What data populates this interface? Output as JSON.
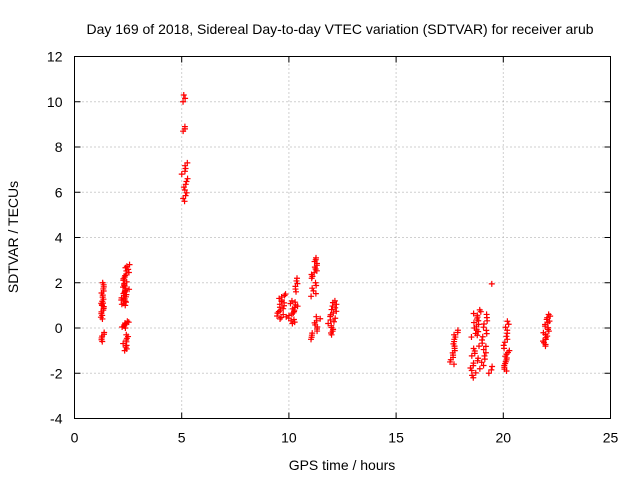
{
  "chart_data": {
    "type": "scatter",
    "title": "Day 169 of 2018, Sidereal Day-to-day VTEC variation (SDTVAR) for receiver arub",
    "xlabel": "GPS time / hours",
    "ylabel": "SDTVAR / TECUs",
    "xlim": [
      0,
      25
    ],
    "ylim": [
      -4,
      12
    ],
    "xticks": [
      "0",
      "5",
      "10",
      "15",
      "20",
      "25"
    ],
    "yticks": [
      "-4",
      "-2",
      "0",
      "2",
      "4",
      "6",
      "8",
      "10",
      "12"
    ],
    "grid": true,
    "marker": "plus",
    "marker_color": "#ff0000",
    "series": [
      {
        "name": "SDTVAR",
        "clusters": [
          {
            "x": [
              1.2,
              1.4
            ],
            "y": [
              1.0,
              2.0
            ],
            "n": 12
          },
          {
            "x": [
              1.2,
              1.4
            ],
            "y": [
              0.4,
              1.1
            ],
            "n": 10
          },
          {
            "x": [
              1.2,
              1.4
            ],
            "y": [
              -0.6,
              -0.2
            ],
            "n": 6
          },
          {
            "x": [
              2.2,
              2.6
            ],
            "y": [
              1.9,
              2.8
            ],
            "n": 14
          },
          {
            "x": [
              2.1,
              2.6
            ],
            "y": [
              1.0,
              1.9
            ],
            "n": 20
          },
          {
            "x": [
              2.2,
              2.6
            ],
            "y": [
              0.0,
              0.3
            ],
            "n": 8
          },
          {
            "x": [
              2.2,
              2.6
            ],
            "y": [
              -1.0,
              -0.3
            ],
            "n": 10
          },
          {
            "x": [
              5.0,
              5.2
            ],
            "y": [
              10.0,
              10.3
            ],
            "n": 3
          },
          {
            "x": [
              5.0,
              5.2
            ],
            "y": [
              8.7,
              8.9
            ],
            "n": 3
          },
          {
            "x": [
              5.0,
              5.3
            ],
            "y": [
              6.8,
              7.3
            ],
            "n": 5
          },
          {
            "x": [
              5.0,
              5.3
            ],
            "y": [
              5.6,
              6.6
            ],
            "n": 9
          },
          {
            "x": [
              9.4,
              9.9
            ],
            "y": [
              0.4,
              1.5
            ],
            "n": 18
          },
          {
            "x": [
              9.8,
              10.5
            ],
            "y": [
              0.2,
              1.2
            ],
            "n": 18
          },
          {
            "x": [
              10.2,
              10.5
            ],
            "y": [
              1.6,
              2.2
            ],
            "n": 6
          },
          {
            "x": [
              11.0,
              11.4
            ],
            "y": [
              2.2,
              3.1
            ],
            "n": 12
          },
          {
            "x": [
              11.0,
              11.4
            ],
            "y": [
              1.4,
              2.0
            ],
            "n": 6
          },
          {
            "x": [
              11.0,
              11.5
            ],
            "y": [
              -0.5,
              0.5
            ],
            "n": 12
          },
          {
            "x": [
              11.8,
              12.3
            ],
            "y": [
              0.2,
              1.2
            ],
            "n": 14
          },
          {
            "x": [
              11.8,
              12.2
            ],
            "y": [
              -0.3,
              0.1
            ],
            "n": 6
          },
          {
            "x": [
              17.5,
              17.9
            ],
            "y": [
              -1.6,
              -0.1
            ],
            "n": 16
          },
          {
            "x": [
              18.4,
              18.9
            ],
            "y": [
              -2.2,
              -0.8
            ],
            "n": 14
          },
          {
            "x": [
              18.4,
              19.0
            ],
            "y": [
              -0.4,
              0.8
            ],
            "n": 16
          },
          {
            "x": [
              18.9,
              19.3
            ],
            "y": [
              -1.8,
              0.6
            ],
            "n": 18
          },
          {
            "x": [
              19.4,
              19.5
            ],
            "y": [
              1.9,
              2.0
            ],
            "n": 1
          },
          {
            "x": [
              19.3,
              19.5
            ],
            "y": [
              -2.0,
              -1.7
            ],
            "n": 3
          },
          {
            "x": [
              20.0,
              20.3
            ],
            "y": [
              -1.9,
              -1.0
            ],
            "n": 12
          },
          {
            "x": [
              20.0,
              20.3
            ],
            "y": [
              -0.9,
              0.3
            ],
            "n": 10
          },
          {
            "x": [
              21.8,
              22.2
            ],
            "y": [
              -0.8,
              0.6
            ],
            "n": 20
          }
        ]
      }
    ]
  }
}
